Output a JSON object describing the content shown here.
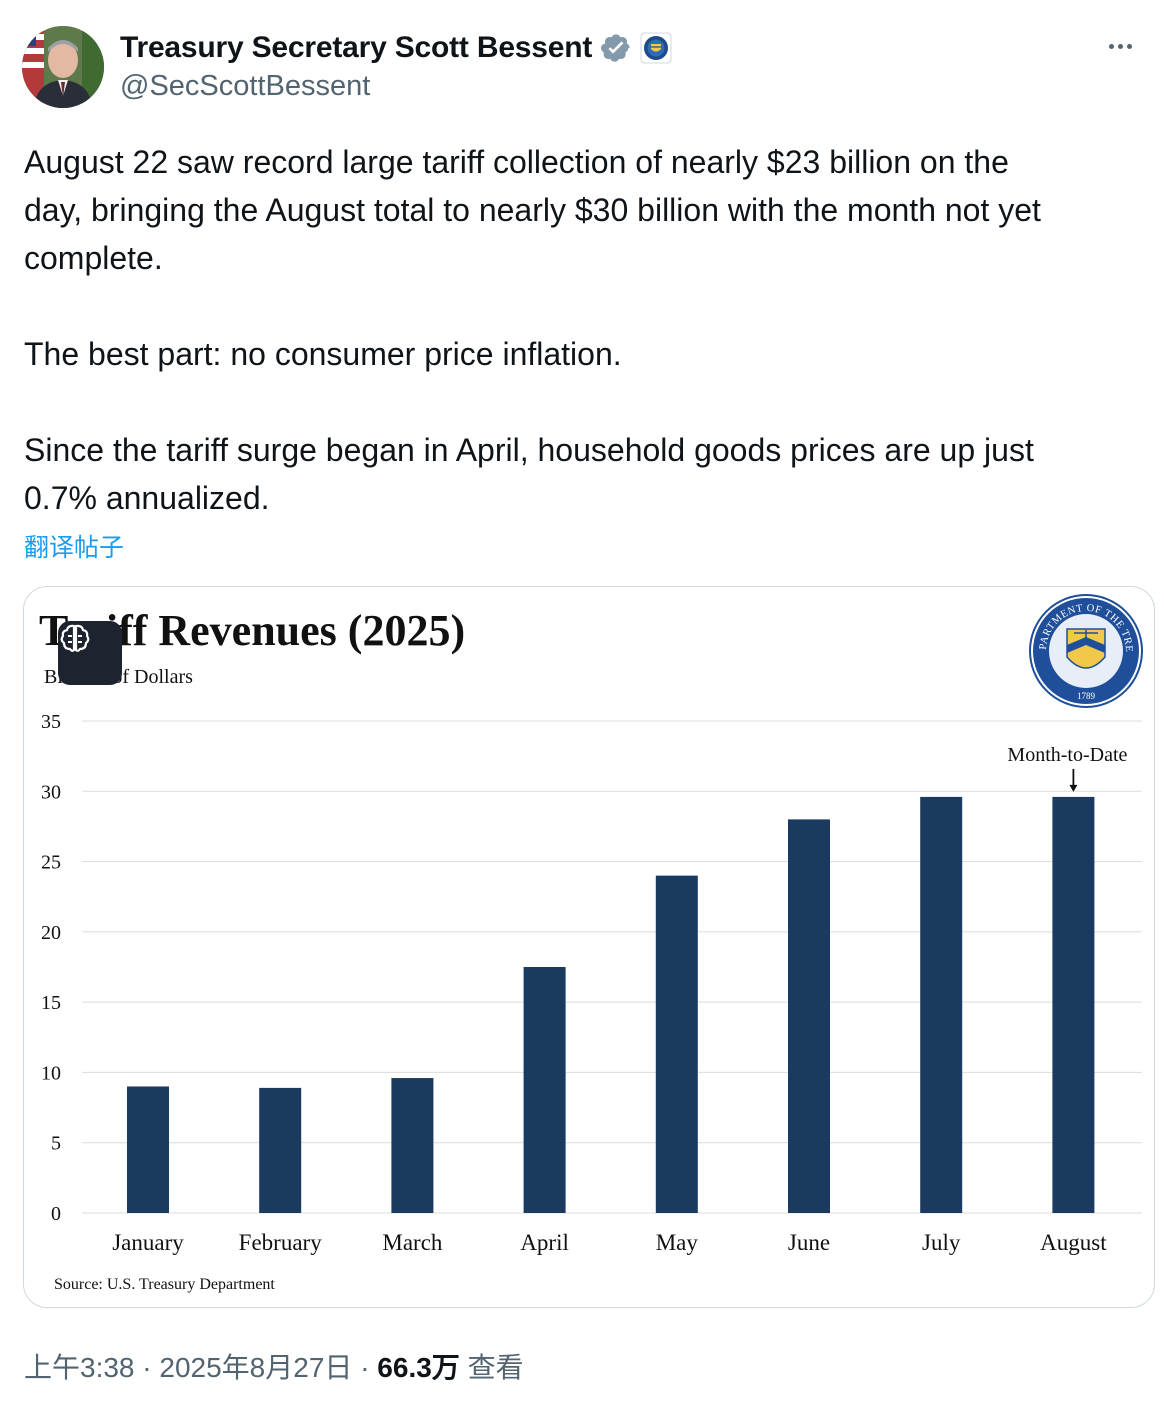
{
  "author": {
    "display_name": "Treasury Secretary Scott Bessent",
    "handle": "@SecScottBessent",
    "verified_icon": "verified-badge-icon",
    "affiliation_icon": "treasury-seal-icon"
  },
  "tweet": {
    "lines": [
      "August 22 saw record large tariff collection of nearly $23 billion on the",
      "day, bringing the August total to nearly $30 billion with the month not yet",
      "complete.",
      "",
      "The best part: no consumer price inflation.",
      "",
      "Since the tariff surge began in April, household goods prices are up just",
      "0.7% annualized."
    ],
    "translate_label": "翻译帖子"
  },
  "chart_data": {
    "type": "bar",
    "title": "Tariff Revenues (2025)",
    "subtitle": "Billions of Dollars",
    "categories": [
      "January",
      "February",
      "March",
      "April",
      "May",
      "June",
      "July",
      "August"
    ],
    "values": [
      9.0,
      8.9,
      9.6,
      17.5,
      24.0,
      28.0,
      29.6,
      29.6
    ],
    "ylim": [
      0,
      35
    ],
    "yticks": [
      0,
      5,
      10,
      15,
      20,
      25,
      30,
      35
    ],
    "grid": true,
    "annotation": "Month-to-Date",
    "source": "Source: U.S. Treasury Department",
    "bar_color": "#1a3a5f",
    "seal_text": "THE DEPARTMENT OF THE TREASURY",
    "seal_year": "1789"
  },
  "footer": {
    "time": "上午3:38",
    "date": "2025年8月27日",
    "views_count": "66.3万",
    "views_label": "查看",
    "separator": "·"
  },
  "colors": {
    "text_primary": "#0f1419",
    "text_secondary": "#536471",
    "link": "#1d9bf0",
    "verified": "#829aab",
    "card_border": "#cfd9de"
  }
}
